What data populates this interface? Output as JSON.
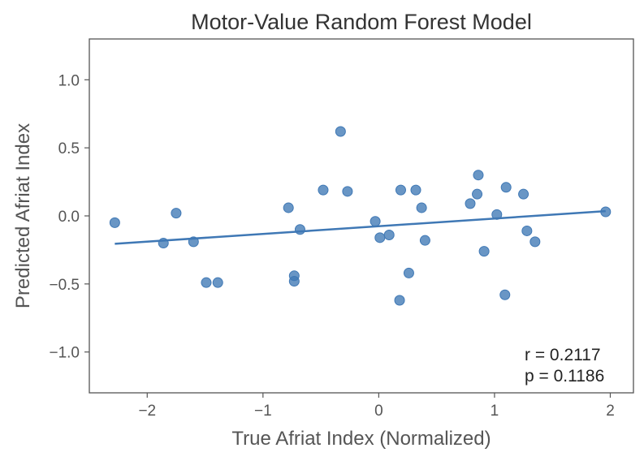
{
  "chart_data": {
    "type": "scatter",
    "title": "Motor-Value Random Forest Model",
    "xlabel": "True Afriat Index (Normalized)",
    "ylabel": "Predicted Afriat Index",
    "xlim": [
      -2.5,
      2.2
    ],
    "ylim": [
      -1.3,
      1.3
    ],
    "xticks": [
      -2,
      -1,
      0,
      1,
      2
    ],
    "xtick_labels": [
      "−2",
      "−1",
      "0",
      "1",
      "2"
    ],
    "yticks": [
      1.0,
      0.5,
      0.0,
      -0.5,
      -1.0
    ],
    "ytick_labels": [
      "1.0",
      "0.5",
      "0.0",
      "−0.5",
      "−1.0"
    ],
    "grid": false,
    "point_color": "#3f78b5",
    "line_color": "#3f78b5",
    "points": [
      {
        "x": -2.28,
        "y": -0.05
      },
      {
        "x": -1.86,
        "y": -0.2
      },
      {
        "x": -1.75,
        "y": 0.02
      },
      {
        "x": -1.6,
        "y": -0.19
      },
      {
        "x": -1.49,
        "y": -0.49
      },
      {
        "x": -1.39,
        "y": -0.49
      },
      {
        "x": -0.78,
        "y": 0.06
      },
      {
        "x": -0.73,
        "y": -0.44
      },
      {
        "x": -0.73,
        "y": -0.48
      },
      {
        "x": -0.68,
        "y": -0.1
      },
      {
        "x": -0.48,
        "y": 0.19
      },
      {
        "x": -0.33,
        "y": 0.62
      },
      {
        "x": -0.27,
        "y": 0.18
      },
      {
        "x": -0.03,
        "y": -0.04
      },
      {
        "x": 0.01,
        "y": -0.16
      },
      {
        "x": 0.09,
        "y": -0.14
      },
      {
        "x": 0.18,
        "y": -0.62
      },
      {
        "x": 0.19,
        "y": 0.19
      },
      {
        "x": 0.26,
        "y": -0.42
      },
      {
        "x": 0.32,
        "y": 0.19
      },
      {
        "x": 0.37,
        "y": 0.06
      },
      {
        "x": 0.4,
        "y": -0.18
      },
      {
        "x": 0.79,
        "y": 0.09
      },
      {
        "x": 0.85,
        "y": 0.16
      },
      {
        "x": 0.86,
        "y": 0.3
      },
      {
        "x": 0.91,
        "y": -0.26
      },
      {
        "x": 1.02,
        "y": 0.01
      },
      {
        "x": 1.09,
        "y": -0.58
      },
      {
        "x": 1.1,
        "y": 0.21
      },
      {
        "x": 1.25,
        "y": 0.16
      },
      {
        "x": 1.28,
        "y": -0.11
      },
      {
        "x": 1.35,
        "y": -0.19
      },
      {
        "x": 1.96,
        "y": 0.03
      }
    ],
    "fit_line": {
      "x": [
        -2.28,
        1.96
      ],
      "y": [
        -0.205,
        0.035
      ]
    },
    "annotation": {
      "r": "r = 0.2117",
      "p": "p = 0.1186"
    }
  }
}
